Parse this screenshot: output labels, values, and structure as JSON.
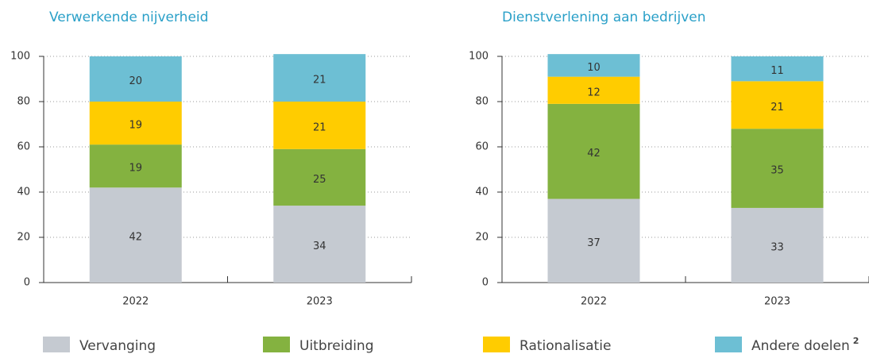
{
  "chart_data": [
    {
      "type": "stacked_bar",
      "title": "Verwerkende nijverheid",
      "categories": [
        "2022",
        "2023"
      ],
      "series": [
        {
          "name": "Vervanging",
          "color": "#c5cad1",
          "values": [
            42,
            34
          ]
        },
        {
          "name": "Uitbreiding",
          "color": "#84b240",
          "values": [
            19,
            25
          ]
        },
        {
          "name": "Rationalisatie",
          "color": "#ffcc00",
          "values": [
            19,
            21
          ]
        },
        {
          "name": "Andere doelen",
          "color": "#6dbfd4",
          "values": [
            20,
            21
          ]
        }
      ],
      "ylim": [
        0,
        100
      ],
      "yticks": [
        0,
        20,
        40,
        60,
        80,
        100
      ],
      "grid": true
    },
    {
      "type": "stacked_bar",
      "title": "Dienstverlening aan bedrijven",
      "categories": [
        "2022",
        "2023"
      ],
      "series": [
        {
          "name": "Vervanging",
          "color": "#c5cad1",
          "values": [
            37,
            33
          ]
        },
        {
          "name": "Uitbreiding",
          "color": "#84b240",
          "values": [
            42,
            35
          ]
        },
        {
          "name": "Rationalisatie",
          "color": "#ffcc00",
          "values": [
            12,
            21
          ]
        },
        {
          "name": "Andere doelen",
          "color": "#6dbfd4",
          "values": [
            10,
            11
          ]
        }
      ],
      "ylim": [
        0,
        100
      ],
      "yticks": [
        0,
        20,
        40,
        60,
        80,
        100
      ],
      "grid": true
    }
  ],
  "legend_footnote": "2"
}
